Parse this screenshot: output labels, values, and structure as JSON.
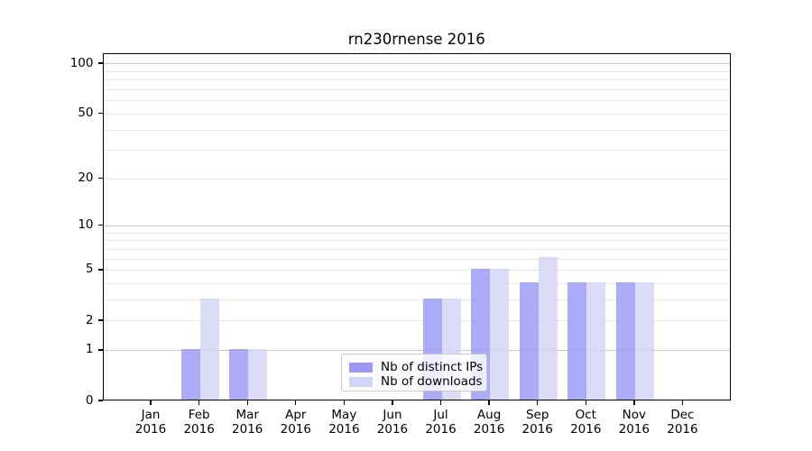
{
  "chart_data": {
    "type": "bar",
    "title": "rn230rnense 2016",
    "categories": [
      "Jan",
      "Feb",
      "Mar",
      "Apr",
      "May",
      "Jun",
      "Jul",
      "Aug",
      "Sep",
      "Oct",
      "Nov",
      "Dec"
    ],
    "category_year": "2016",
    "series": [
      {
        "name": "Nb of distinct IPs",
        "color": "#9898f5",
        "values": [
          0,
          1,
          1,
          0,
          0,
          0,
          3,
          5,
          4,
          4,
          4,
          0
        ]
      },
      {
        "name": "Nb of downloads",
        "color": "#d4d4f6",
        "values": [
          0,
          3,
          1,
          0,
          0,
          0,
          3,
          5,
          6,
          4,
          4,
          0
        ]
      }
    ],
    "xlabel": "",
    "ylabel": "",
    "y_scale": "log1p",
    "ylim": [
      0,
      115
    ],
    "y_ticks": [
      0,
      1,
      2,
      5,
      10,
      20,
      50,
      100
    ],
    "y_major_grid": [
      1,
      10,
      100
    ],
    "y_minor_grid": [
      3,
      4,
      6,
      7,
      8,
      9,
      30,
      40,
      60,
      70,
      80,
      90
    ],
    "grid": "horizontal",
    "legend_position": "lower-center",
    "colors": {
      "major_grid": "#c8c8c8",
      "minor_grid": "#e9e9e9",
      "axis": "#000000",
      "background": "#ffffff",
      "text": "#000000"
    }
  }
}
